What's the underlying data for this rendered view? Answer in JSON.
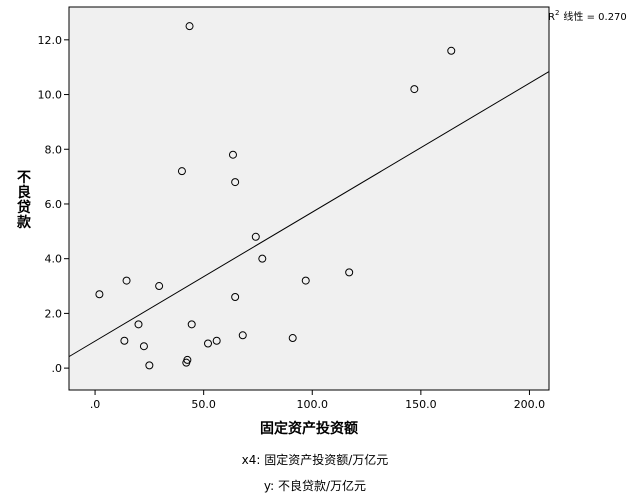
{
  "chart_data": {
    "type": "scatter",
    "xlabel": "固定资产投资额",
    "ylabel": "不良贷款",
    "xlim": [
      -12,
      209
    ],
    "ylim": [
      -0.8,
      13.2
    ],
    "x_ticks": [
      0,
      50,
      100,
      150,
      200
    ],
    "x_tick_labels": [
      ".0",
      "50.0",
      "100.0",
      "150.0",
      "200.0"
    ],
    "y_ticks": [
      0,
      2,
      4,
      6,
      8,
      10,
      12
    ],
    "y_tick_labels": [
      ".0",
      "2.0",
      "4.0",
      "6.0",
      "8.0",
      "10.0",
      "12.0"
    ],
    "grid": false,
    "background": "#f0f0f0",
    "marker_color": "#000000",
    "points": [
      {
        "x": 2,
        "y": 2.7
      },
      {
        "x": 13.5,
        "y": 1.0
      },
      {
        "x": 14.5,
        "y": 3.2
      },
      {
        "x": 20,
        "y": 1.6
      },
      {
        "x": 22.5,
        "y": 0.8
      },
      {
        "x": 25,
        "y": 0.1
      },
      {
        "x": 29.5,
        "y": 3.0
      },
      {
        "x": 40,
        "y": 7.2
      },
      {
        "x": 42,
        "y": 0.2
      },
      {
        "x": 42.5,
        "y": 0.3
      },
      {
        "x": 43.5,
        "y": 12.5
      },
      {
        "x": 44.5,
        "y": 1.6
      },
      {
        "x": 52,
        "y": 0.9
      },
      {
        "x": 56,
        "y": 1.0
      },
      {
        "x": 63.5,
        "y": 7.8
      },
      {
        "x": 64.5,
        "y": 2.6
      },
      {
        "x": 64.5,
        "y": 6.8
      },
      {
        "x": 68,
        "y": 1.2
      },
      {
        "x": 74,
        "y": 4.8
      },
      {
        "x": 77,
        "y": 4.0
      },
      {
        "x": 91,
        "y": 1.1
      },
      {
        "x": 97,
        "y": 3.2
      },
      {
        "x": 117,
        "y": 3.5
      },
      {
        "x": 147,
        "y": 10.2
      },
      {
        "x": 164,
        "y": 11.6
      }
    ],
    "fit_line": {
      "label": "线性",
      "r2_prefix": "R",
      "r2_sup": "2",
      "r2_text": "线性 = 0.270",
      "r2_value": 0.27,
      "x": [
        -12,
        209
      ],
      "y": [
        0.42,
        10.84
      ]
    }
  },
  "footnotes": {
    "x_var": "x4: 固定资产投资额/万亿元",
    "y_var": "y: 不良贷款/万亿元"
  }
}
